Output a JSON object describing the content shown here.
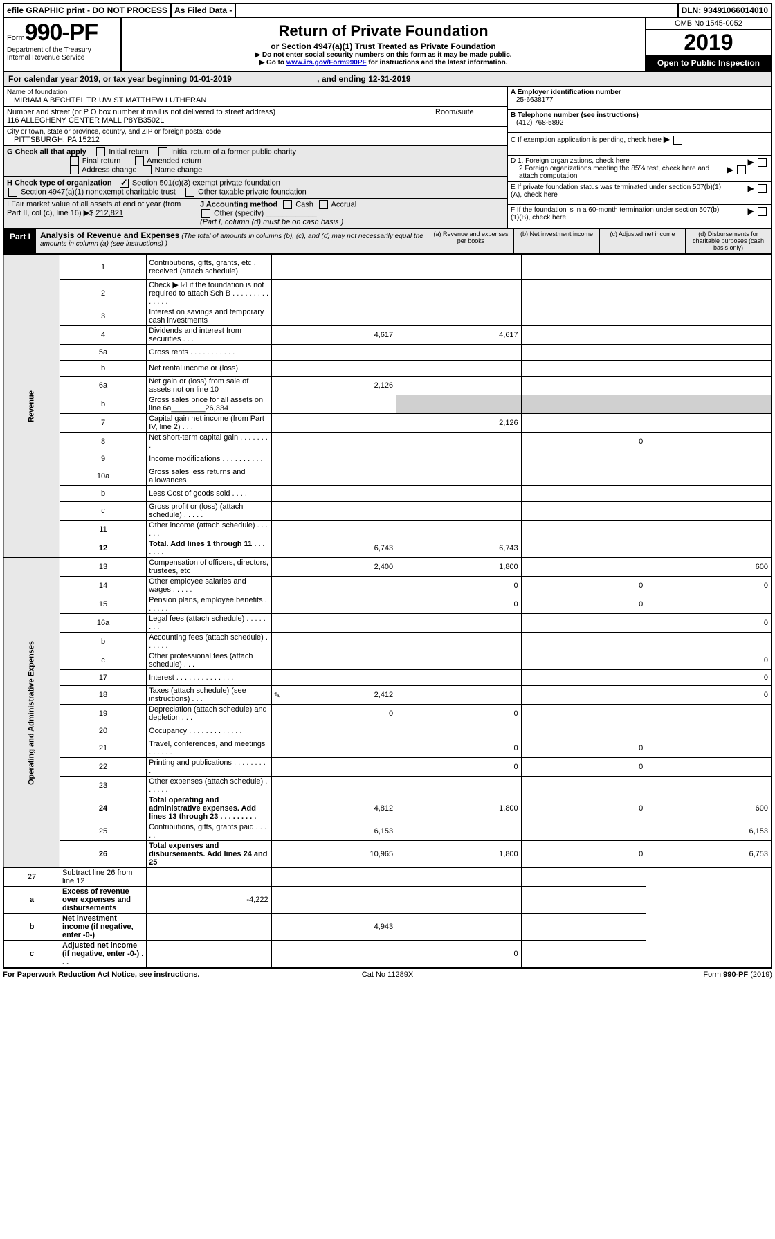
{
  "topbar": {
    "efile": "efile GRAPHIC print - DO NOT PROCESS",
    "asfiled": "As Filed Data -",
    "dln": "DLN: 93491066014010"
  },
  "header": {
    "form_prefix": "Form",
    "form_number": "990-PF",
    "dept": "Department of the Treasury",
    "irs": "Internal Revenue Service",
    "title": "Return of Private Foundation",
    "subtitle": "or Section 4947(a)(1) Trust Treated as Private Foundation",
    "warn1": "▶ Do not enter social security numbers on this form as it may be made public.",
    "warn2_pre": "▶ Go to ",
    "warn2_link": "www.irs.gov/Form990PF",
    "warn2_post": " for instructions and the latest information.",
    "omb": "OMB No 1545-0052",
    "year": "2019",
    "open": "Open to Public Inspection"
  },
  "calyear": {
    "text_pre": "For calendar year 2019, or tax year beginning ",
    "begin": "01-01-2019",
    "mid": " , and ending ",
    "end": "12-31-2019"
  },
  "foundation": {
    "name_lbl": "Name of foundation",
    "name": "MIRIAM A BECHTEL TR UW ST MATTHEW LUTHERAN",
    "addr_lbl": "Number and street (or P O  box number if mail is not delivered to street address)",
    "room_lbl": "Room/suite",
    "addr": "116 ALLEGHENY CENTER MALL P8YB3502L",
    "city_lbl": "City or town, state or province, country, and ZIP or foreign postal code",
    "city": "PITTSBURGH, PA  15212"
  },
  "right_info": {
    "A_lbl": "A Employer identification number",
    "A_val": "25-6638177",
    "B_lbl": "B Telephone number (see instructions)",
    "B_val": "(412) 768-5892",
    "C_lbl": "C If exemption application is pending, check here",
    "D1_lbl": "D 1. Foreign organizations, check here",
    "D2_lbl": "2 Foreign organizations meeting the 85% test, check here and attach computation",
    "E_lbl": "E  If private foundation status was terminated under section 507(b)(1)(A), check here",
    "F_lbl": "F  If the foundation is in a 60-month termination under section 507(b)(1)(B), check here"
  },
  "checks": {
    "G_lbl": "G Check all that apply",
    "initial": "Initial return",
    "initial_former": "Initial return of a former public charity",
    "final": "Final return",
    "amended": "Amended return",
    "addr_change": "Address change",
    "name_change": "Name change",
    "H_lbl": "H Check type of organization",
    "h1": "Section 501(c)(3) exempt private foundation",
    "h2": "Section 4947(a)(1) nonexempt charitable trust",
    "h3": "Other taxable private foundation",
    "I_lbl": "I Fair market value of all assets at end of year (from Part II, col  (c), line 16)",
    "I_val": "212,821",
    "J_lbl": "J Accounting method",
    "j_cash": "Cash",
    "j_accrual": "Accrual",
    "j_other": "Other (specify)",
    "j_note": "(Part I, column (d) must be on cash basis )"
  },
  "part1": {
    "label": "Part I",
    "title_b": "Analysis of Revenue and Expenses",
    "title_rest": " (The total of amounts in columns (b), (c), and (d) may not necessarily equal the amounts in column (a) (see instructions) )",
    "col_a": "(a) Revenue and expenses per books",
    "col_b": "(b) Net investment income",
    "col_c": "(c) Adjusted net income",
    "col_d": "(d) Disbursements for charitable purposes (cash basis only)"
  },
  "sections": {
    "revenue": "Revenue",
    "expenses": "Operating and Administrative Expenses"
  },
  "rows": [
    {
      "n": "1",
      "d": "Contributions, gifts, grants, etc , received (attach schedule)",
      "a": "",
      "b": "",
      "c": "",
      "e": "",
      "db": true
    },
    {
      "n": "2",
      "d": "Check ▶ ☑ if the foundation is not required to attach Sch  B    .  .  .  .  .  .  .  .  .  .  .  .  .  .",
      "a": "",
      "b": "",
      "c": "",
      "e": ""
    },
    {
      "n": "3",
      "d": "Interest on savings and temporary cash investments",
      "a": "",
      "b": "",
      "c": "",
      "e": ""
    },
    {
      "n": "4",
      "d": "Dividends and interest from securities    .  .  .",
      "a": "4,617",
      "b": "4,617",
      "c": "",
      "e": ""
    },
    {
      "n": "5a",
      "d": "Gross rents     .  .  .  .  .  .  .  .  .  .  .",
      "a": "",
      "b": "",
      "c": "",
      "e": ""
    },
    {
      "n": "b",
      "d": "Net rental income or (loss)  ",
      "a": "",
      "b": "",
      "c": "",
      "e": ""
    },
    {
      "n": "6a",
      "d": "Net gain or (loss) from sale of assets not on line 10",
      "a": "2,126",
      "b": "",
      "c": "",
      "e": ""
    },
    {
      "n": "b",
      "d": "Gross sales price for all assets on line 6a________26,334",
      "a": "",
      "b": "",
      "c": "",
      "e": "",
      "grey_bcd": true
    },
    {
      "n": "7",
      "d": "Capital gain net income (from Part IV, line 2)   .  .  .",
      "a": "",
      "b": "2,126",
      "c": "",
      "e": ""
    },
    {
      "n": "8",
      "d": "Net short-term capital gain  .  .  .  .  .  .  .  .",
      "a": "",
      "b": "",
      "c": "0",
      "e": ""
    },
    {
      "n": "9",
      "d": "Income modifications .  .  .  .  .  .  .  .  .  .",
      "a": "",
      "b": "",
      "c": "",
      "e": ""
    },
    {
      "n": "10a",
      "d": "Gross sales less returns and allowances",
      "a": "",
      "b": "",
      "c": "",
      "e": ""
    },
    {
      "n": "b",
      "d": "Less  Cost of goods sold    .  .  .  .",
      "a": "",
      "b": "",
      "c": "",
      "e": ""
    },
    {
      "n": "c",
      "d": "Gross profit or (loss) (attach schedule)    .  .  .  .  .",
      "a": "",
      "b": "",
      "c": "",
      "e": ""
    },
    {
      "n": "11",
      "d": "Other income (attach schedule)    .  .  .  .  .  .",
      "a": "",
      "b": "",
      "c": "",
      "e": ""
    },
    {
      "n": "12",
      "d": "Total. Add lines 1 through 11   .  .  .  .  .  .  .",
      "a": "6,743",
      "b": "6,743",
      "c": "",
      "e": "",
      "bold": true
    }
  ],
  "exp_rows": [
    {
      "n": "13",
      "d": "Compensation of officers, directors, trustees, etc",
      "a": "2,400",
      "b": "1,800",
      "c": "",
      "e": "600"
    },
    {
      "n": "14",
      "d": "Other employee salaries and wages    .  .  .  .  .",
      "a": "",
      "b": "0",
      "c": "0",
      "e": "0"
    },
    {
      "n": "15",
      "d": "Pension plans, employee benefits  .  .  .  .  .  .",
      "a": "",
      "b": "0",
      "c": "0",
      "e": ""
    },
    {
      "n": "16a",
      "d": "Legal fees (attach schedule) .  .  .  .  .  .  .  .",
      "a": "",
      "b": "",
      "c": "",
      "e": "0"
    },
    {
      "n": "b",
      "d": "Accounting fees (attach schedule)  .  .  .  .  .  .",
      "a": "",
      "b": "",
      "c": "",
      "e": ""
    },
    {
      "n": "c",
      "d": "Other professional fees (attach schedule)    .  .  .",
      "a": "",
      "b": "",
      "c": "",
      "e": "0"
    },
    {
      "n": "17",
      "d": "Interest  .  .  .  .  .  .  .  .  .  .  .  .  .  .",
      "a": "",
      "b": "",
      "c": "",
      "e": "0"
    },
    {
      "n": "18",
      "d": "Taxes (attach schedule) (see instructions)     .  .  .",
      "a": "2,412",
      "b": "",
      "c": "",
      "e": "0",
      "icon": true
    },
    {
      "n": "19",
      "d": "Depreciation (attach schedule) and depletion    .  .  .",
      "a": "0",
      "b": "0",
      "c": "",
      "e": ""
    },
    {
      "n": "20",
      "d": "Occupancy   .  .  .  .  .  .  .  .  .  .  .  .  .",
      "a": "",
      "b": "",
      "c": "",
      "e": ""
    },
    {
      "n": "21",
      "d": "Travel, conferences, and meetings .  .  .  .  .  .",
      "a": "",
      "b": "0",
      "c": "0",
      "e": ""
    },
    {
      "n": "22",
      "d": "Printing and publications .  .  .  .  .  .  .  .  .",
      "a": "",
      "b": "0",
      "c": "0",
      "e": ""
    },
    {
      "n": "23",
      "d": "Other expenses (attach schedule)  .  .  .  .  .  .",
      "a": "",
      "b": "",
      "c": "",
      "e": ""
    },
    {
      "n": "24",
      "d": "Total operating and administrative expenses. Add lines 13 through 23   .  .  .  .  .  .  .  .  .",
      "a": "4,812",
      "b": "1,800",
      "c": "0",
      "e": "600",
      "bold": true,
      "db": true
    },
    {
      "n": "25",
      "d": "Contributions, gifts, grants paid     .  .  .  .  .",
      "a": "6,153",
      "b": "",
      "c": "",
      "e": "6,153"
    },
    {
      "n": "26",
      "d": "Total expenses and disbursements. Add lines 24 and 25",
      "a": "10,965",
      "b": "1,800",
      "c": "0",
      "e": "6,753",
      "bold": true,
      "db": true
    }
  ],
  "bottom_rows": [
    {
      "n": "27",
      "d": "Subtract line 26 from line 12",
      "a": "",
      "b": "",
      "c": "",
      "e": ""
    },
    {
      "n": "a",
      "d": "Excess of revenue over expenses and disbursements",
      "a": "-4,222",
      "b": "",
      "c": "",
      "e": "",
      "bold": true
    },
    {
      "n": "b",
      "d": "Net investment income (if negative, enter -0-)",
      "a": "",
      "b": "4,943",
      "c": "",
      "e": "",
      "bold": true
    },
    {
      "n": "c",
      "d": "Adjusted net income (if negative, enter -0-)   .  .  .",
      "a": "",
      "b": "",
      "c": "0",
      "e": "",
      "bold": true
    }
  ],
  "footer": {
    "left": "For Paperwork Reduction Act Notice, see instructions.",
    "center": "Cat  No  11289X",
    "right": "Form 990-PF (2019)"
  },
  "colors": {
    "shade": "#e8e8e8",
    "grey": "#d0d0d0",
    "link": "#0000cc"
  }
}
